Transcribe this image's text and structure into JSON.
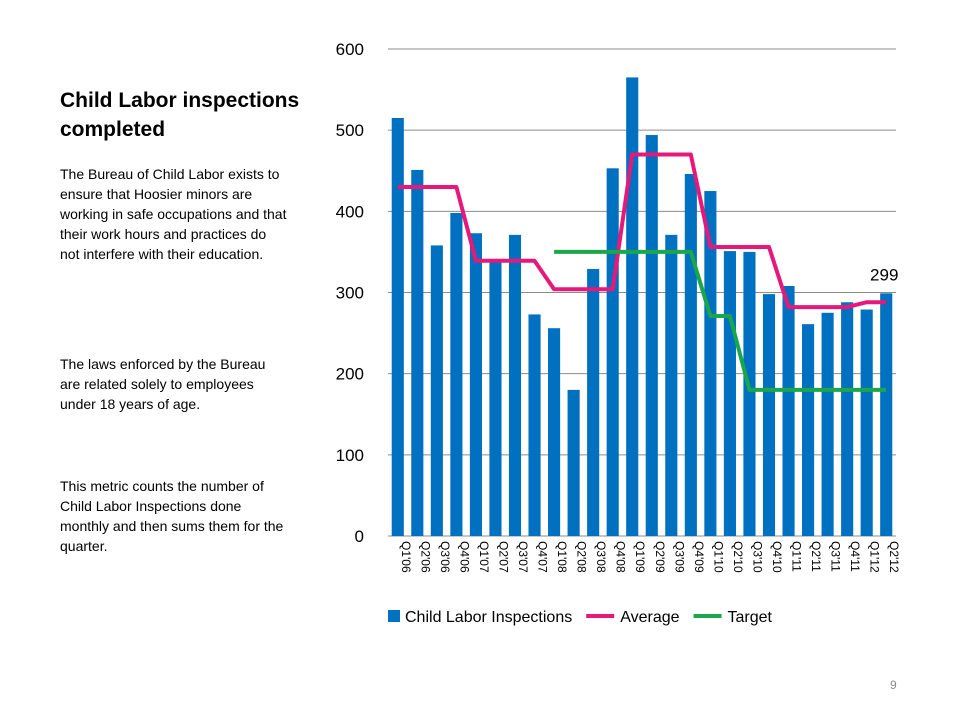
{
  "slide": {
    "title": "Child Labor inspections completed",
    "paragraphs": [
      "The Bureau of Child Labor exists to ensure that Hoosier minors are working in safe occupations and that their work hours and practices do not interfere with their education.",
      "The laws enforced by the Bureau are related solely to employees under 18 years of age.",
      "This metric counts the number of Child Labor Inspections done monthly and then sums them for the quarter."
    ],
    "page_number": "9"
  },
  "chart_data": {
    "type": "bar",
    "title": "",
    "xlabel": "",
    "ylabel": "",
    "ylim": [
      0,
      600
    ],
    "yticks": [
      0,
      100,
      200,
      300,
      400,
      500,
      600
    ],
    "grid": true,
    "legend_position": "bottom",
    "categories": [
      "Q1'06",
      "Q2'06",
      "Q3'06",
      "Q4'06",
      "Q1'07",
      "Q2'07",
      "Q3'07",
      "Q4'07",
      "Q1'08",
      "Q2'08",
      "Q3'08",
      "Q4'08",
      "Q1'09",
      "Q2'09",
      "Q3'09",
      "Q4'09",
      "Q1'10",
      "Q2'10",
      "Q3'10",
      "Q4'10",
      "Q1'11",
      "Q2'11",
      "Q3'11",
      "Q4'11",
      "Q1'12",
      "Q2'12"
    ],
    "series": [
      {
        "name": "Child Labor Inspections",
        "type": "bar",
        "color": "#0070c0",
        "values": [
          515,
          451,
          358,
          398,
          373,
          339,
          371,
          273,
          256,
          180,
          329,
          453,
          565,
          494,
          371,
          446,
          425,
          351,
          350,
          298,
          308,
          261,
          275,
          288,
          279,
          299
        ]
      },
      {
        "name": "Average",
        "type": "line",
        "color": "#e6197a",
        "values": [
          430,
          430,
          430,
          430,
          339,
          339,
          339,
          339,
          304,
          304,
          304,
          304,
          470,
          470,
          470,
          470,
          356,
          356,
          356,
          356,
          282,
          282,
          282,
          282,
          288,
          288
        ]
      },
      {
        "name": "Target",
        "type": "line",
        "color": "#1aa64a",
        "values": [
          null,
          null,
          null,
          null,
          null,
          null,
          null,
          null,
          350,
          350,
          350,
          350,
          350,
          350,
          350,
          350,
          271,
          271,
          180,
          180,
          180,
          180,
          180,
          180,
          180,
          180
        ]
      }
    ],
    "annotations": [
      {
        "category": "Q2'12",
        "text": "299"
      }
    ]
  }
}
